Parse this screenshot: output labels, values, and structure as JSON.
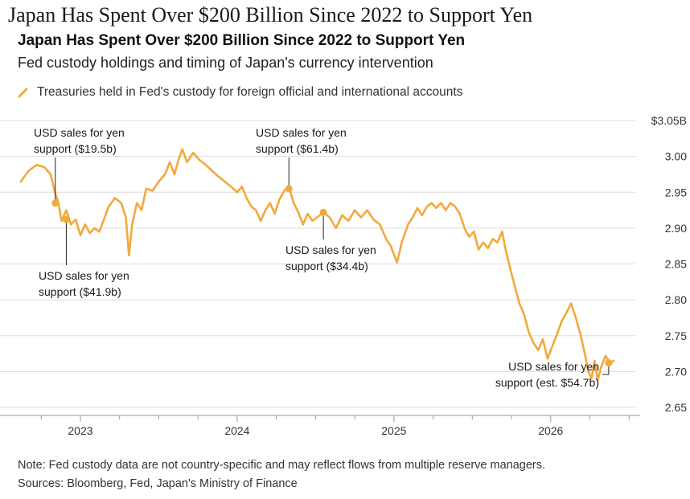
{
  "page": {
    "headline": "Japan Has Spent Over $200 Billion Since 2022 to Support Yen",
    "note": "Note: Fed custody data are not country-specific and may reflect flows from multiple reserve managers.",
    "sources": "Sources: Bloomberg, Fed, Japan's Ministry of Finance"
  },
  "colors": {
    "series": "#f2a93b",
    "grid": "#dddddd",
    "axis": "#999999"
  },
  "chart_data": {
    "type": "line",
    "title": "Japan Has Spent Over $200 Billion Since 2022 to Support Yen",
    "subtitle": "Fed custody holdings and timing of Japan's currency intervention",
    "ylabel": "",
    "xlabel": "",
    "y_unit_label": "$3.05B",
    "ylim": [
      2.65,
      3.05
    ],
    "y_ticks": [
      {
        "value": 3.05,
        "label": "$3.05B"
      },
      {
        "value": 3.0,
        "label": "3.00"
      },
      {
        "value": 2.95,
        "label": "2.95"
      },
      {
        "value": 2.9,
        "label": "2.90"
      },
      {
        "value": 2.85,
        "label": "2.85"
      },
      {
        "value": 2.8,
        "label": "2.80"
      },
      {
        "value": 2.75,
        "label": "2.75"
      },
      {
        "value": 2.7,
        "label": "2.70"
      },
      {
        "value": 2.65,
        "label": "2.65"
      }
    ],
    "xlim": [
      2022.6,
      2026.55
    ],
    "x_ticks": [
      {
        "value": 2023.0,
        "label": "2023"
      },
      {
        "value": 2024.0,
        "label": "2024"
      },
      {
        "value": 2025.0,
        "label": "2025"
      },
      {
        "value": 2026.0,
        "label": "2026"
      }
    ],
    "grid": true,
    "legend_position": "top-left",
    "series": [
      {
        "name": "Treasuries held in Fed's custody for foreign official and international accounts",
        "points": [
          [
            2022.62,
            2.965
          ],
          [
            2022.67,
            2.98
          ],
          [
            2022.72,
            2.988
          ],
          [
            2022.77,
            2.985
          ],
          [
            2022.81,
            2.975
          ],
          [
            2022.84,
            2.948
          ],
          [
            2022.86,
            2.935
          ],
          [
            2022.88,
            2.91
          ],
          [
            2022.91,
            2.925
          ],
          [
            2022.94,
            2.905
          ],
          [
            2022.97,
            2.912
          ],
          [
            2023.0,
            2.89
          ],
          [
            2023.03,
            2.905
          ],
          [
            2023.06,
            2.893
          ],
          [
            2023.09,
            2.9
          ],
          [
            2023.12,
            2.895
          ],
          [
            2023.15,
            2.912
          ],
          [
            2023.18,
            2.93
          ],
          [
            2023.22,
            2.942
          ],
          [
            2023.26,
            2.935
          ],
          [
            2023.29,
            2.915
          ],
          [
            2023.31,
            2.862
          ],
          [
            2023.33,
            2.905
          ],
          [
            2023.36,
            2.935
          ],
          [
            2023.39,
            2.925
          ],
          [
            2023.42,
            2.955
          ],
          [
            2023.46,
            2.952
          ],
          [
            2023.5,
            2.965
          ],
          [
            2023.54,
            2.975
          ],
          [
            2023.57,
            2.992
          ],
          [
            2023.6,
            2.975
          ],
          [
            2023.63,
            2.998
          ],
          [
            2023.65,
            3.01
          ],
          [
            2023.68,
            2.992
          ],
          [
            2023.72,
            3.005
          ],
          [
            2023.76,
            2.995
          ],
          [
            2023.8,
            2.988
          ],
          [
            2023.84,
            2.98
          ],
          [
            2023.88,
            2.972
          ],
          [
            2023.92,
            2.965
          ],
          [
            2023.96,
            2.958
          ],
          [
            2024.0,
            2.95
          ],
          [
            2024.03,
            2.958
          ],
          [
            2024.06,
            2.942
          ],
          [
            2024.09,
            2.93
          ],
          [
            2024.12,
            2.925
          ],
          [
            2024.15,
            2.91
          ],
          [
            2024.18,
            2.925
          ],
          [
            2024.21,
            2.935
          ],
          [
            2024.24,
            2.92
          ],
          [
            2024.27,
            2.94
          ],
          [
            2024.3,
            2.952
          ],
          [
            2024.33,
            2.958
          ],
          [
            2024.36,
            2.935
          ],
          [
            2024.39,
            2.922
          ],
          [
            2024.42,
            2.905
          ],
          [
            2024.45,
            2.92
          ],
          [
            2024.48,
            2.91
          ],
          [
            2024.51,
            2.915
          ],
          [
            2024.55,
            2.922
          ],
          [
            2024.59,
            2.915
          ],
          [
            2024.63,
            2.9
          ],
          [
            2024.67,
            2.918
          ],
          [
            2024.71,
            2.91
          ],
          [
            2024.75,
            2.925
          ],
          [
            2024.79,
            2.915
          ],
          [
            2024.83,
            2.925
          ],
          [
            2024.87,
            2.912
          ],
          [
            2024.91,
            2.905
          ],
          [
            2024.95,
            2.885
          ],
          [
            2024.98,
            2.875
          ],
          [
            2025.02,
            2.852
          ],
          [
            2025.05,
            2.88
          ],
          [
            2025.09,
            2.905
          ],
          [
            2025.12,
            2.915
          ],
          [
            2025.15,
            2.928
          ],
          [
            2025.18,
            2.918
          ],
          [
            2025.21,
            2.93
          ],
          [
            2025.24,
            2.935
          ],
          [
            2025.27,
            2.928
          ],
          [
            2025.3,
            2.935
          ],
          [
            2025.33,
            2.925
          ],
          [
            2025.36,
            2.935
          ],
          [
            2025.39,
            2.93
          ],
          [
            2025.42,
            2.92
          ],
          [
            2025.45,
            2.9
          ],
          [
            2025.48,
            2.888
          ],
          [
            2025.51,
            2.895
          ],
          [
            2025.54,
            2.87
          ],
          [
            2025.57,
            2.88
          ],
          [
            2025.6,
            2.872
          ],
          [
            2025.63,
            2.885
          ],
          [
            2025.66,
            2.88
          ],
          [
            2025.69,
            2.895
          ],
          [
            2025.71,
            2.872
          ],
          [
            2025.74,
            2.845
          ],
          [
            2025.77,
            2.82
          ],
          [
            2025.8,
            2.795
          ],
          [
            2025.83,
            2.78
          ],
          [
            2025.86,
            2.755
          ],
          [
            2025.89,
            2.74
          ],
          [
            2025.92,
            2.73
          ],
          [
            2025.95,
            2.745
          ],
          [
            2025.98,
            2.718
          ],
          [
            2026.01,
            2.735
          ],
          [
            2026.04,
            2.752
          ],
          [
            2026.07,
            2.77
          ],
          [
            2026.1,
            2.782
          ],
          [
            2026.13,
            2.795
          ],
          [
            2026.16,
            2.775
          ],
          [
            2026.19,
            2.752
          ],
          [
            2026.22,
            2.722
          ],
          [
            2026.24,
            2.7
          ],
          [
            2026.26,
            2.69
          ],
          [
            2026.28,
            2.715
          ],
          [
            2026.3,
            2.688
          ],
          [
            2026.32,
            2.705
          ],
          [
            2026.35,
            2.722
          ],
          [
            2026.38,
            2.712
          ],
          [
            2026.4,
            2.715
          ]
        ]
      }
    ],
    "markers": [
      {
        "x": 2022.84,
        "y": 2.935
      },
      {
        "x": 2022.91,
        "y": 2.912
      },
      {
        "x": 2024.33,
        "y": 2.955
      },
      {
        "x": 2024.55,
        "y": 2.922
      },
      {
        "x": 2026.37,
        "y": 2.712
      }
    ],
    "annotations": [
      {
        "line1": "USD sales for yen",
        "line2": "support ($19.5b)"
      },
      {
        "line1": "USD sales for yen",
        "line2": "support ($41.9b)"
      },
      {
        "line1": "USD sales for yen",
        "line2": "support ($61.4b)"
      },
      {
        "line1": "USD sales for yen",
        "line2": "support ($34.4b)"
      },
      {
        "line1": "USD sales for yen",
        "line2": "support (est. $54.7b)"
      }
    ]
  }
}
